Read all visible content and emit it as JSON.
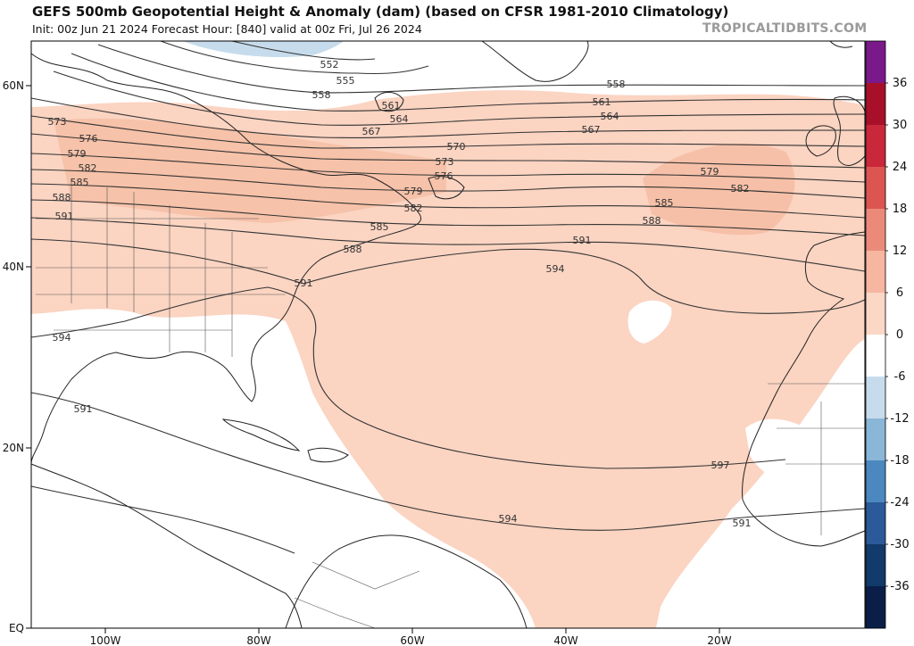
{
  "header": {
    "title": "GEFS 500mb Geopotential Height & Anomaly (dam) (based on CFSR 1981-2010 Climatology)",
    "subtitle": "Init: 00z Jun 21 2024   Forecast Hour: [840]   valid at 00z Fri, Jul 26 2024",
    "brand": "TROPICALTIDBITS.COM"
  },
  "map": {
    "lat_labels": [
      "60N",
      "40N",
      "20N",
      "EQ"
    ],
    "lon_labels": [
      "100W",
      "80W",
      "60W",
      "40W",
      "20W"
    ],
    "contour_labels": [
      "552",
      "555",
      "558",
      "558",
      "561",
      "561",
      "564",
      "564",
      "567",
      "567",
      "570",
      "573",
      "573",
      "576",
      "576",
      "579",
      "579",
      "579",
      "582",
      "582",
      "582",
      "585",
      "585",
      "585",
      "588",
      "588",
      "588",
      "591",
      "591",
      "591",
      "591",
      "591",
      "594",
      "594",
      "594",
      "597"
    ],
    "colors": {
      "land": "#ffffff",
      "ocean": "#ffffff",
      "anomaly_positive": "#fbd4c2",
      "anomaly_positive_strong": "#f5bea5",
      "anomaly_negative": "#c6dcec",
      "contour": "#333333"
    }
  },
  "colorbar": {
    "ticks": [
      "36",
      "30",
      "24",
      "18",
      "12",
      "6",
      "0",
      "-6",
      "-12",
      "-18",
      "-24",
      "-30",
      "-36"
    ],
    "colors": [
      "#7a1a8a",
      "#a8102a",
      "#c8283a",
      "#dc5550",
      "#ec8a7a",
      "#f6b6a0",
      "#fbd7c6",
      "#ffffff",
      "#c6dcec",
      "#8ab6d8",
      "#4c88c0",
      "#2a5a9a",
      "#123a6a",
      "#0a1e48"
    ]
  }
}
